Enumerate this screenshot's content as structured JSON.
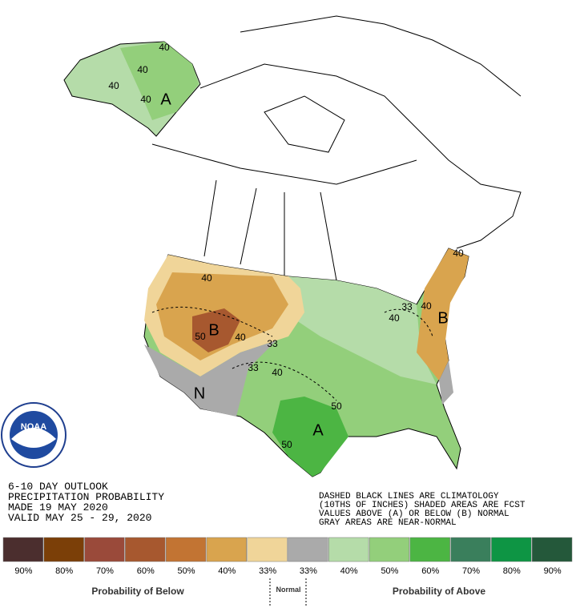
{
  "outlook": {
    "lines": [
      "6-10 DAY OUTLOOK",
      "PRECIPITATION PROBABILITY",
      "MADE  19 MAY 2020",
      "VALID  MAY 25 - 29, 2020"
    ]
  },
  "notes": [
    "DASHED BLACK LINES ARE CLIMATOLOGY",
    "(10THS OF INCHES) SHADED AREAS ARE FCST",
    "VALUES ABOVE (A) OR BELOW (B) NORMAL",
    "GRAY AREAS ARE NEAR-NORMAL"
  ],
  "logo": "NOAA",
  "map": {
    "labels": [
      "40",
      "40",
      "40",
      "40",
      "A",
      "40",
      "50",
      "B",
      "40",
      "33",
      "33",
      "40",
      "N",
      "A",
      "50",
      "50",
      "40",
      "33",
      "40",
      "40",
      "B"
    ]
  },
  "legend": {
    "items": [
      {
        "label": "90%",
        "color": "#4b2e2e"
      },
      {
        "label": "80%",
        "color": "#7b3f08"
      },
      {
        "label": "70%",
        "color": "#9a4a3a"
      },
      {
        "label": "60%",
        "color": "#a7582f"
      },
      {
        "label": "50%",
        "color": "#c27433"
      },
      {
        "label": "40%",
        "color": "#d9a44e"
      },
      {
        "label": "33%",
        "color": "#f0d599"
      },
      {
        "label": "33%",
        "color": "#aaaaaa"
      },
      {
        "label": "40%",
        "color": "#b5dca9"
      },
      {
        "label": "50%",
        "color": "#93cf7b"
      },
      {
        "label": "60%",
        "color": "#4cb543"
      },
      {
        "label": "70%",
        "color": "#3a7f5c"
      },
      {
        "label": "80%",
        "color": "#0e9544"
      },
      {
        "label": "90%",
        "color": "#24583a"
      }
    ],
    "below": "Probability of Below",
    "normal": "Normal",
    "above": "Probability of Above"
  }
}
